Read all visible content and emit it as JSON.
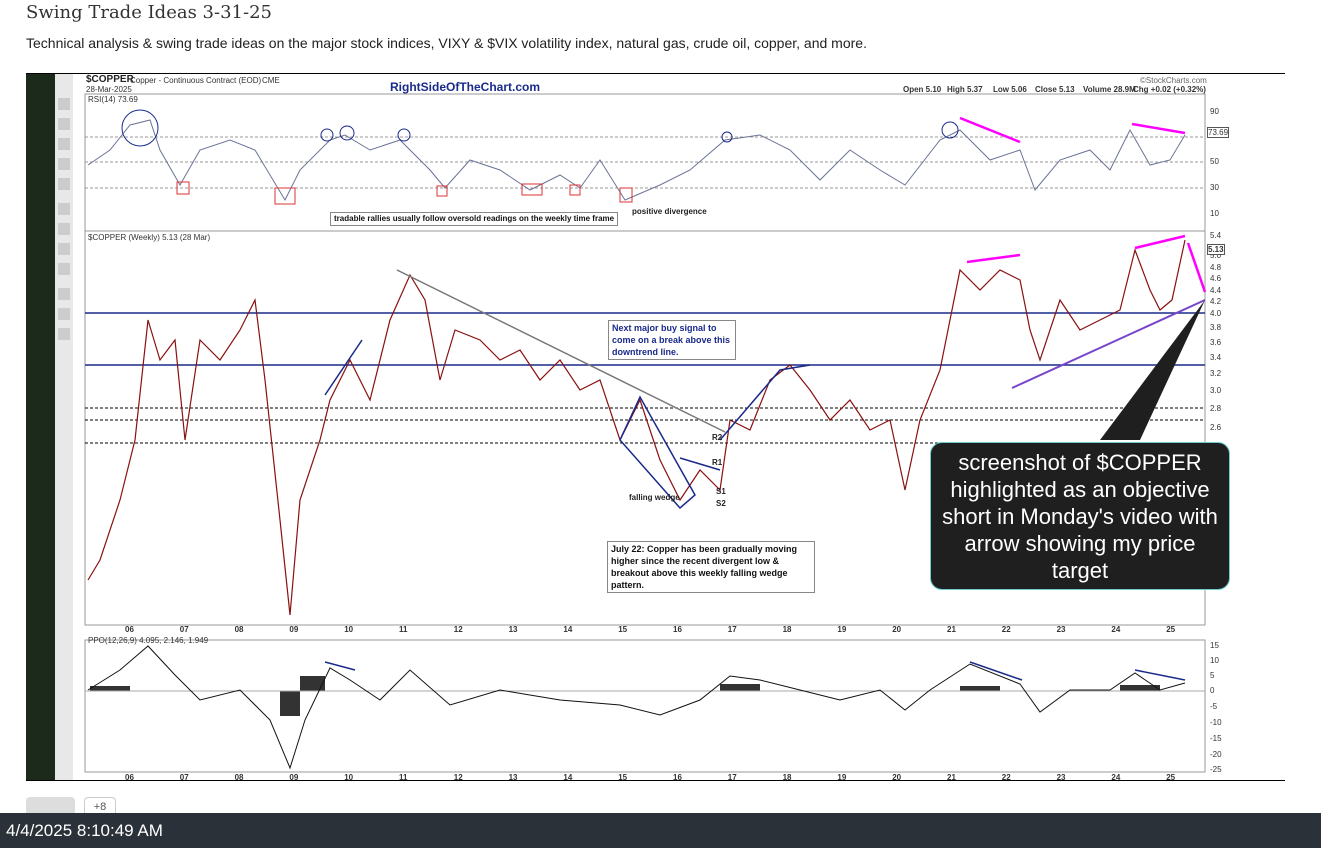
{
  "post": {
    "title": "Swing Trade Ideas 3-31-25",
    "subtitle": "Technical analysis & swing trade ideas on the major stock indices, VIXY & $VIX volatility index, natural gas, crude oil, copper, and more."
  },
  "chart": {
    "symbol": "$COPPER",
    "description": "Copper - Continuous Contract (EOD)",
    "exchange": "CME",
    "date": "28-Mar-2025",
    "watermark": "RightSideOfTheChart.com",
    "quote": [
      "Open 5.10",
      "High 5.37",
      "Low 5.06",
      "Close 5.13",
      "Volume 28.9M",
      "Chg +0.02 (+0.32%)"
    ],
    "source": "©StockCharts.com",
    "rsi": {
      "label": "RSI(14) 73.69",
      "ticks": [
        "90",
        "70",
        "50",
        "30",
        "10"
      ],
      "last": "73.69",
      "note": "tradable rallies usually follow oversold readings on the weekly time frame",
      "divergence": "positive divergence"
    },
    "price": {
      "label": "$COPPER (Weekly) 5.13 (28 Mar)",
      "ticks": [
        "5.4",
        "5.0",
        "4.8",
        "4.6",
        "4.4",
        "4.2",
        "4.0",
        "3.8",
        "3.6",
        "3.4",
        "3.2",
        "3.0",
        "2.8",
        "2.6"
      ],
      "last": "5.13",
      "buy_signal": "Next major buy signal to come on a break above this downtrend line.",
      "wedge": "falling wedge",
      "levels": [
        "R2",
        "R1",
        "S1",
        "S2"
      ],
      "note": "July 22: Copper has been gradually moving higher since the recent divergent low & breakout above this weekly falling wedge pattern."
    },
    "years": [
      "06",
      "07",
      "08",
      "09",
      "10",
      "11",
      "12",
      "13",
      "14",
      "15",
      "16",
      "17",
      "18",
      "19",
      "20",
      "21",
      "22",
      "23",
      "24",
      "25"
    ],
    "ppo": {
      "label": "PPO(12,26,9) 4.095, 2.146, 1.949",
      "ticks": [
        "15",
        "10",
        "5",
        "0",
        "-5",
        "-10",
        "-15",
        "-20",
        "-25"
      ]
    }
  },
  "callout": "screenshot of $COPPER highlighted as an objective short in Monday's video with arrow showing my price target",
  "like_count": "+8",
  "taskbar_time": "4/4/2025 8:10:49 AM"
}
